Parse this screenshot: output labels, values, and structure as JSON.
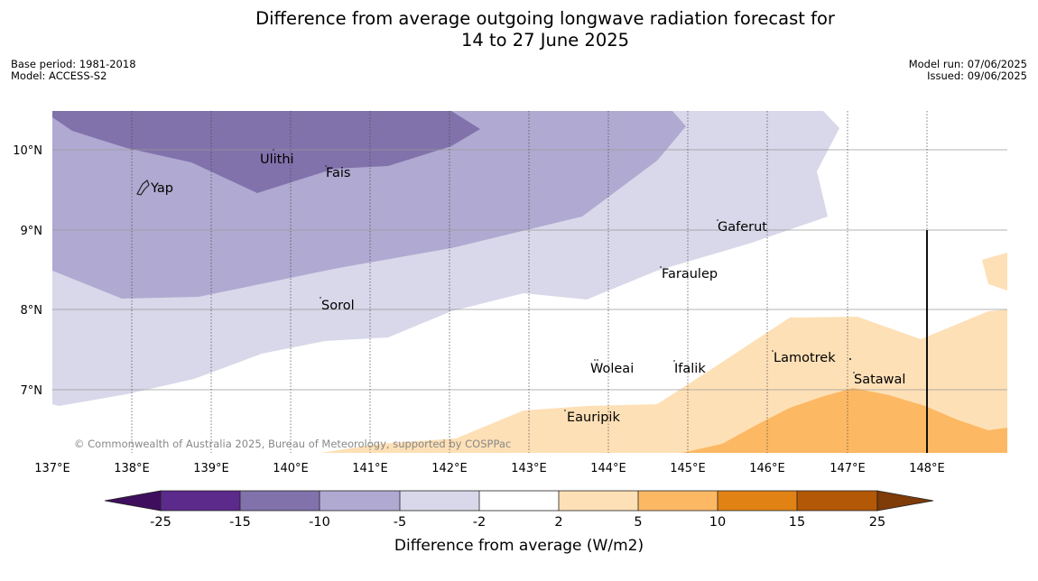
{
  "title_line1": "Difference from average outgoing longwave radiation forecast for",
  "title_line2": "14 to 27 June 2025",
  "base_period": "Base period: 1981-2018",
  "model": "Model: ACCESS-S2",
  "model_run": "Model run: 07/06/2025",
  "issued": "Issued: 09/06/2025",
  "copyright": "© Commonwealth of Australia 2025, Bureau of Meteorology, supported by COSPPac",
  "lon_labels": [
    "137°E",
    "138°E",
    "139°E",
    "140°E",
    "141°E",
    "142°E",
    "143°E",
    "144°E",
    "145°E",
    "146°E",
    "147°E",
    "148°E"
  ],
  "lat_labels": [
    "10°N",
    "9°N",
    "8°N",
    "7°N"
  ],
  "places": [
    "Yap",
    "Ulithi",
    "Fais",
    "Gaferut",
    "Faraulep",
    "Sorol",
    "Woleai",
    "Ifalik",
    "Lamotrek",
    "Satawal",
    "Eauripik"
  ],
  "colorbar": {
    "title": "Difference from average (W/m2)",
    "tick_labels": [
      "-25",
      "-15",
      "-10",
      "-5",
      "-2",
      "2",
      "5",
      "10",
      "15",
      "25"
    ],
    "colors": [
      "#3f0f5e",
      "#5b2a8b",
      "#8172ac",
      "#b0a9d1",
      "#d8d8ea",
      "#ffffff",
      "#fee0b6",
      "#fdb863",
      "#e08214",
      "#b35806",
      "#7f3b08"
    ]
  },
  "map_colors": {
    "very_negative": "#8172ac",
    "negative": "#b0a9d1",
    "slightly_negative": "#d8d8ea",
    "slightly_positive": "#fee0b6",
    "positive": "#fdb863"
  }
}
